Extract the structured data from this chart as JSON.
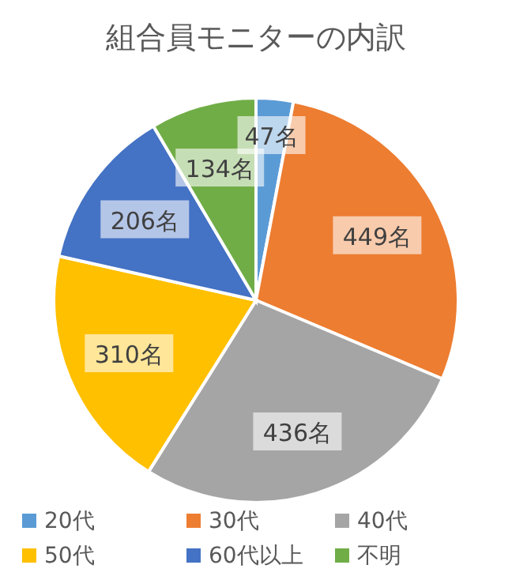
{
  "chart_data": {
    "type": "pie",
    "title": "組合員モニターの内訳",
    "categories": [
      "20代",
      "30代",
      "40代",
      "50代",
      "60代以上",
      "不明"
    ],
    "values": [
      47,
      449,
      436,
      310,
      206,
      134
    ],
    "colors": [
      "#5b9bd5",
      "#ed7d31",
      "#a5a5a5",
      "#ffc000",
      "#4472c4",
      "#70ad47"
    ],
    "value_labels": [
      "47名",
      "449名",
      "436名",
      "310名",
      "206名",
      "134名"
    ],
    "legend": "bottom"
  }
}
